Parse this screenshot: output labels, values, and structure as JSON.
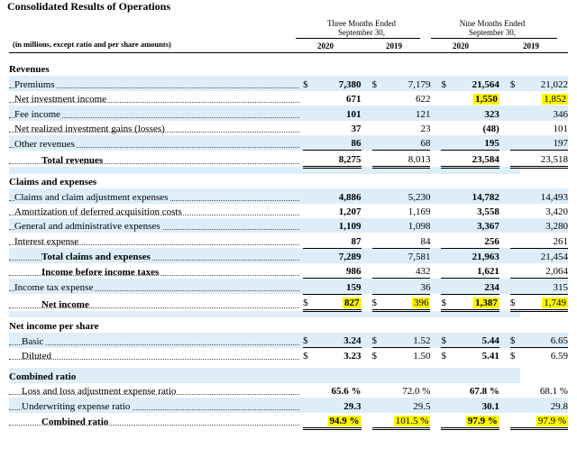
{
  "title": "Consolidated Results of Operations",
  "header": {
    "three_months": "Three Months Ended",
    "three_months_date": "September 30,",
    "nine_months": "Nine Months Ended",
    "nine_months_date": "September 30,",
    "unit_note": "(in millions, except ratio and per share amounts)",
    "years": [
      "2020",
      "2019",
      "2020",
      "2019"
    ]
  },
  "sections": {
    "revenues": "Revenues",
    "claims": "Claims and expenses",
    "eps": "Net income per share",
    "ratio": "Combined ratio"
  },
  "rows": {
    "premiums": {
      "label": "Premiums",
      "v": [
        "7,380",
        "7,179",
        "21,564",
        "21,022"
      ]
    },
    "nii": {
      "label": "Net investment income",
      "v": [
        "671",
        "622",
        "1,550",
        "1,852"
      ]
    },
    "fee": {
      "label": "Fee income",
      "v": [
        "101",
        "121",
        "323",
        "346"
      ]
    },
    "nrig": {
      "label": "Net realized investment gains (losses)",
      "v": [
        "37",
        "23",
        "(48)",
        "101"
      ]
    },
    "other": {
      "label": "Other revenues",
      "v": [
        "86",
        "68",
        "195",
        "197"
      ]
    },
    "total_rev": {
      "label": "Total revenues",
      "v": [
        "8,275",
        "8,013",
        "23,584",
        "23,518"
      ]
    },
    "claims_adj": {
      "label": "Claims and claim adjustment expenses",
      "v": [
        "4,886",
        "5,230",
        "14,782",
        "14,493"
      ]
    },
    "amort": {
      "label": "Amortization of deferred acquisition costs",
      "v": [
        "1,207",
        "1,169",
        "3,558",
        "3,420"
      ]
    },
    "ga": {
      "label": "General and administrative expenses",
      "v": [
        "1,109",
        "1,098",
        "3,367",
        "3,280"
      ]
    },
    "interest": {
      "label": "Interest expense",
      "v": [
        "87",
        "84",
        "256",
        "261"
      ]
    },
    "total_claims": {
      "label": "Total claims and expenses",
      "v": [
        "7,289",
        "7,581",
        "21,963",
        "21,454"
      ]
    },
    "ibt": {
      "label": "Income before income taxes",
      "v": [
        "986",
        "432",
        "1,621",
        "2,064"
      ]
    },
    "tax": {
      "label": "Income tax expense",
      "v": [
        "159",
        "36",
        "234",
        "315"
      ]
    },
    "net": {
      "label": "Net income",
      "v": [
        "827",
        "396",
        "1,387",
        "1,749"
      ]
    },
    "basic": {
      "label": "Basic",
      "v": [
        "3.24",
        "1.52",
        "5.44",
        "6.65"
      ]
    },
    "diluted": {
      "label": "Diluted",
      "v": [
        "3.23",
        "1.50",
        "5.41",
        "6.59"
      ]
    },
    "loss_ratio": {
      "label": "Loss and loss adjustment expense ratio",
      "v": [
        "65.6 %",
        "72.0 %",
        "67.8 %",
        "68.1 %"
      ]
    },
    "uw_ratio": {
      "label": "Underwriting expense ratio",
      "v": [
        "29.3",
        "29.5",
        "30.1",
        "29.8"
      ]
    },
    "combined": {
      "label": "Combined ratio",
      "v": [
        "94.9 %",
        "101.5 %",
        "97.9 %",
        "97.9 %"
      ]
    }
  },
  "currency": "$",
  "highlight_color": "#fdf500",
  "shade_color": "#ddeefa"
}
